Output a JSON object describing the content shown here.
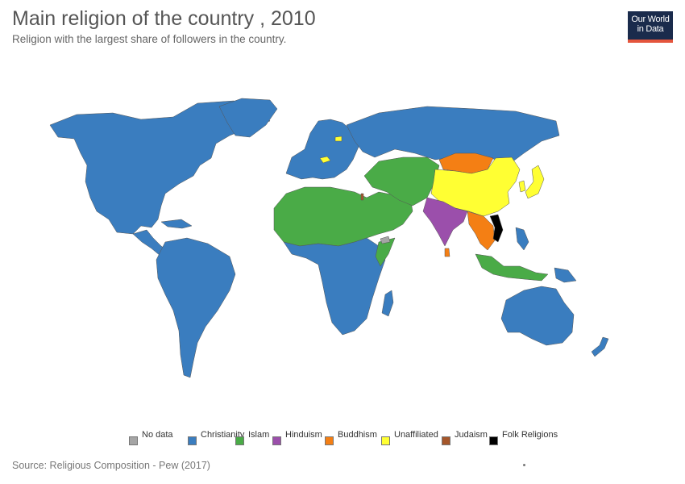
{
  "header": {
    "title": "Main religion of the country , 2010",
    "subtitle": "Religion with the largest share of followers in the country."
  },
  "logo": {
    "line1": "Our World",
    "line2": "in Data",
    "background": "#1a2b4c",
    "accent": "#e4553d"
  },
  "legend": [
    {
      "label": "No data",
      "color": "#a5a5a5"
    },
    {
      "label": "Christianity",
      "color": "#3a7dbf"
    },
    {
      "label": "Islam",
      "color": "#4aab47"
    },
    {
      "label": "Hinduism",
      "color": "#9b4fab"
    },
    {
      "label": "Buddhism",
      "color": "#f47f14"
    },
    {
      "label": "Unaffiliated",
      "color": "#ffff33"
    },
    {
      "label": "Judaism",
      "color": "#a5562a"
    },
    {
      "label": "Folk Religions",
      "color": "#000000"
    }
  ],
  "footer": {
    "source": "Source: Religious Composition - Pew (2017)"
  }
}
